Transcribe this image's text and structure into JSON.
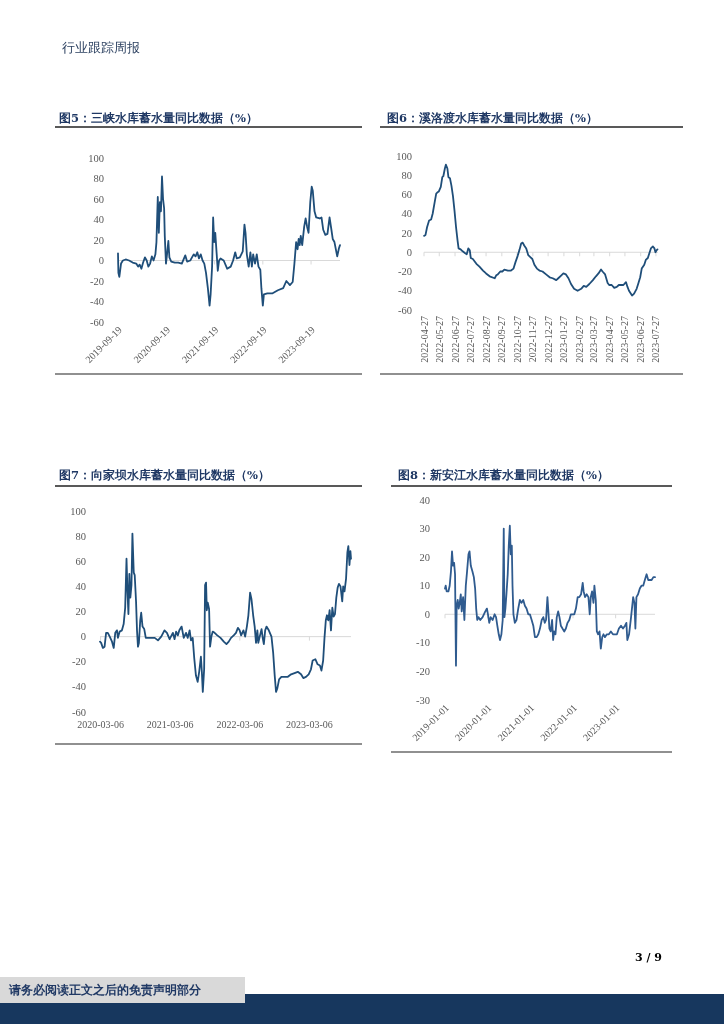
{
  "chart_data": [
    {
      "type": "line",
      "title": "图5：三峡水库蓄水量同比数据（%）",
      "annotations": [
        "行业跟踪周报"
      ],
      "color": "#1f4e79",
      "xlim": [
        "2019-09-19",
        "2024-04-25"
      ],
      "xticks": [
        "2019-09-19",
        "2020-09-19",
        "2021-09-19",
        "2022-09-19",
        "2023-09-19"
      ],
      "ylim": [
        -60,
        100
      ],
      "yticks": [
        -60,
        -40,
        -20,
        0,
        20,
        40,
        60,
        80,
        100
      ],
      "x": [
        "2019-09-19",
        "2019-09-22",
        "2019-09-29",
        "2019-10-12",
        "2019-10-26",
        "2019-11-16",
        "2019-12-12",
        "2020-01-08",
        "2020-02-04",
        "2020-02-18",
        "2020-03-01",
        "2020-03-14",
        "2020-03-27",
        "2020-04-10",
        "2020-04-23",
        "2020-05-06",
        "2020-05-19",
        "2020-06-01",
        "2020-06-14",
        "2020-06-28",
        "2020-07-06",
        "2020-07-16",
        "2020-07-24",
        "2020-08-01",
        "2020-08-09",
        "2020-08-17",
        "2020-08-25",
        "2020-09-02",
        "2020-09-07",
        "2020-09-16",
        "2020-09-24",
        "2020-10-04",
        "2020-10-12",
        "2020-10-26",
        "2020-11-22",
        "2020-12-18",
        "2021-01-14",
        "2021-02-09",
        "2021-02-23",
        "2021-03-19",
        "2021-04-01",
        "2021-04-14",
        "2021-04-28",
        "2021-05-11",
        "2021-05-24",
        "2021-06-06",
        "2021-06-20",
        "2021-07-03",
        "2021-07-16",
        "2021-07-30",
        "2021-08-12",
        "2021-08-20",
        "2021-08-31",
        "2021-09-08",
        "2021-09-16",
        "2021-09-24",
        "2021-10-05",
        "2021-10-13",
        "2021-10-23",
        "2021-11-03",
        "2021-11-27",
        "2021-12-23",
        "2022-01-19",
        "2022-02-06",
        "2022-02-22",
        "2022-03-06",
        "2022-03-29",
        "2022-04-20",
        "2022-05-03",
        "2022-05-11",
        "2022-05-21",
        "2022-06-04",
        "2022-06-17",
        "2022-06-28",
        "2022-07-08",
        "2022-07-22",
        "2022-08-04",
        "2022-08-17",
        "2022-08-31",
        "2022-09-08",
        "2022-09-19",
        "2022-09-27",
        "2022-10-23",
        "2022-12-02",
        "2023-01-11",
        "2023-02-20",
        "2023-03-16",
        "2023-04-12",
        "2023-05-03",
        "2023-05-16",
        "2023-05-29",
        "2023-06-09",
        "2023-06-17",
        "2023-06-25",
        "2023-07-03",
        "2023-07-14",
        "2023-07-29",
        "2023-08-09",
        "2023-08-20",
        "2023-08-31",
        "2023-09-13",
        "2023-09-24",
        "2023-10-02",
        "2023-10-15",
        "2023-10-28",
        "2023-11-24",
        "2023-12-07",
        "2023-12-20",
        "2024-01-05",
        "2024-01-21",
        "2024-02-06",
        "2024-02-20",
        "2024-03-01",
        "2024-03-14",
        "2024-04-04",
        "2024-04-17",
        "2024-04-25"
      ],
      "values": [
        7,
        -12,
        -16,
        -3,
        0,
        1,
        0,
        -2,
        -3,
        -6,
        -4,
        -8,
        -2,
        3,
        0,
        -6,
        -3,
        4,
        0,
        6,
        18,
        62,
        27,
        57,
        48,
        82,
        60,
        51,
        24,
        -3,
        6,
        19,
        3,
        -1,
        -2,
        -2,
        -3,
        5,
        -1,
        0,
        3,
        6,
        4,
        8,
        2,
        6,
        0,
        -3,
        -12,
        -27,
        -44,
        -33,
        -6,
        42,
        18,
        27,
        6,
        -10,
        0,
        2,
        0,
        -8,
        -6,
        0,
        8,
        2,
        3,
        9,
        35,
        27,
        6,
        -6,
        8,
        -6,
        6,
        -3,
        6,
        -6,
        -9,
        -27,
        -44,
        -33,
        -32,
        -32,
        -29,
        -27,
        -20,
        -24,
        -21,
        -3,
        18,
        11,
        21,
        15,
        24,
        15,
        33,
        41,
        33,
        27,
        57,
        72,
        68,
        48,
        42,
        41,
        42,
        30,
        25,
        26,
        42,
        30,
        21,
        18,
        4,
        12,
        15
      ]
    },
    {
      "type": "line",
      "title": "图6：溪洛渡水库蓄水量同比数据（%）",
      "color": "#1f4e79",
      "xlim": [
        "2022-04-27",
        "2023-07-31"
      ],
      "xticks": [
        "2022-04-27",
        "2022-05-27",
        "2022-06-27",
        "2022-07-27",
        "2022-08-27",
        "2022-09-27",
        "2022-10-27",
        "2022-11-27",
        "2022-12-27",
        "2023-01-27",
        "2023-02-27",
        "2023-03-27",
        "2023-04-27",
        "2023-05-27",
        "2023-06-27",
        "2023-07-27"
      ],
      "ylim": [
        -60,
        100
      ],
      "yticks": [
        -60,
        -40,
        -20,
        0,
        20,
        40,
        60,
        80,
        100
      ],
      "x": [
        "2022-04-27",
        "2022-04-30",
        "2022-05-03",
        "2022-05-07",
        "2022-05-11",
        "2022-05-14",
        "2022-05-18",
        "2022-05-21",
        "2022-05-23",
        "2022-05-26",
        "2022-05-30",
        "2022-06-02",
        "2022-06-04",
        "2022-06-07",
        "2022-06-09",
        "2022-06-12",
        "2022-06-14",
        "2022-06-17",
        "2022-06-20",
        "2022-06-23",
        "2022-06-26",
        "2022-06-29",
        "2022-07-02",
        "2022-07-04",
        "2022-07-08",
        "2022-07-12",
        "2022-07-17",
        "2022-07-20",
        "2022-07-23",
        "2022-07-26",
        "2022-07-28",
        "2022-08-01",
        "2022-08-08",
        "2022-08-14",
        "2022-08-21",
        "2022-08-27",
        "2022-09-03",
        "2022-09-13",
        "2022-09-16",
        "2022-09-19",
        "2022-09-24",
        "2022-09-28",
        "2022-10-02",
        "2022-10-09",
        "2022-10-15",
        "2022-10-20",
        "2022-10-24",
        "2022-10-28",
        "2022-11-01",
        "2022-11-04",
        "2022-11-07",
        "2022-11-10",
        "2022-11-14",
        "2022-11-18",
        "2022-11-22",
        "2022-11-26",
        "2022-11-30",
        "2022-12-05",
        "2022-12-10",
        "2022-12-16",
        "2022-12-23",
        "2022-12-30",
        "2023-01-05",
        "2023-01-12",
        "2023-01-16",
        "2023-01-22",
        "2023-01-26",
        "2023-01-31",
        "2023-02-05",
        "2023-02-10",
        "2023-02-16",
        "2023-02-23",
        "2023-03-02",
        "2023-03-07",
        "2023-03-12",
        "2023-03-18",
        "2023-03-25",
        "2023-03-31",
        "2023-04-05",
        "2023-04-10",
        "2023-04-13",
        "2023-04-18",
        "2023-04-23",
        "2023-04-26",
        "2023-05-01",
        "2023-05-06",
        "2023-05-11",
        "2023-05-15",
        "2023-05-19",
        "2023-05-24",
        "2023-05-29",
        "2023-06-01",
        "2023-06-04",
        "2023-06-10",
        "2023-06-14",
        "2023-06-19",
        "2023-06-22",
        "2023-06-26",
        "2023-06-29",
        "2023-07-04",
        "2023-07-07",
        "2023-07-11",
        "2023-07-14",
        "2023-07-17",
        "2023-07-21",
        "2023-07-24",
        "2023-07-26",
        "2023-07-28",
        "2023-07-30"
      ],
      "values": [
        17,
        18,
        26,
        33,
        34,
        40,
        52,
        61,
        62,
        63,
        68,
        78,
        79,
        87,
        91,
        87,
        78,
        77,
        69,
        58,
        43,
        26,
        12,
        4,
        3,
        1,
        -1,
        -2,
        4,
        2,
        -6,
        -7,
        -12,
        -15,
        -19,
        -22,
        -25,
        -27,
        -24,
        -23,
        -20,
        -20,
        -18,
        -19,
        -19,
        -17,
        -10,
        -4,
        3,
        9,
        10,
        7,
        4,
        -3,
        -5,
        -7,
        -13,
        -17,
        -19,
        -20,
        -23,
        -26,
        -27,
        -29,
        -27,
        -24,
        -22,
        -23,
        -27,
        -33,
        -38,
        -40,
        -38,
        -35,
        -36,
        -33,
        -29,
        -25,
        -22,
        -18,
        -20,
        -23,
        -32,
        -34,
        -34,
        -37,
        -36,
        -34,
        -34,
        -34,
        -31,
        -36,
        -40,
        -45,
        -43,
        -38,
        -33,
        -26,
        -17,
        -13,
        -8,
        -6,
        -1,
        4,
        6,
        4,
        0,
        2,
        3
      ]
    },
    {
      "type": "line",
      "title": "图7：向家坝水库蓄水量同比数据（%）",
      "color": "#1f4e79",
      "xlim": [
        "2020-03-03",
        "2023-10-10"
      ],
      "xticks": [
        "2020-03-06",
        "2021-03-06",
        "2022-03-06",
        "2023-03-06"
      ],
      "ylim": [
        -60,
        100
      ],
      "yticks": [
        -60,
        -40,
        -20,
        0,
        20,
        40,
        60,
        80,
        100
      ],
      "x": [
        "2020-03-03",
        "2020-03-09",
        "2020-03-18",
        "2020-03-27",
        "2020-04-04",
        "2020-04-13",
        "2020-04-23",
        "2020-05-05",
        "2020-05-14",
        "2020-05-22",
        "2020-05-31",
        "2020-06-05",
        "2020-06-14",
        "2020-06-26",
        "2020-07-05",
        "2020-07-13",
        "2020-07-20",
        "2020-07-25",
        "2020-07-30",
        "2020-08-04",
        "2020-08-09",
        "2020-08-15",
        "2020-08-20",
        "2020-08-27",
        "2020-09-01",
        "2020-09-08",
        "2020-09-13",
        "2020-09-18",
        "2020-09-23",
        "2020-09-30",
        "2020-10-05",
        "2020-10-12",
        "2020-10-21",
        "2020-10-29",
        "2020-11-11",
        "2020-11-28",
        "2020-12-15",
        "2021-01-01",
        "2021-01-18",
        "2021-02-04",
        "2021-02-17",
        "2021-03-03",
        "2021-03-20",
        "2021-03-29",
        "2021-04-06",
        "2021-04-15",
        "2021-04-23",
        "2021-05-05",
        "2021-05-16",
        "2021-05-28",
        "2021-06-06",
        "2021-06-16",
        "2021-06-23",
        "2021-07-02",
        "2021-07-10",
        "2021-07-19",
        "2021-07-28",
        "2021-08-05",
        "2021-08-14",
        "2021-08-19",
        "2021-08-24",
        "2021-08-31",
        "2021-09-05",
        "2021-09-10",
        "2021-09-14",
        "2021-09-19",
        "2021-09-26",
        "2021-10-01",
        "2021-10-08",
        "2021-10-15",
        "2021-10-25",
        "2021-11-08",
        "2021-11-25",
        "2021-12-12",
        "2021-12-26",
        "2022-01-07",
        "2022-01-19",
        "2022-02-02",
        "2022-02-14",
        "2022-02-24",
        "2022-03-05",
        "2022-03-13",
        "2022-03-25",
        "2022-04-03",
        "2022-04-12",
        "2022-04-20",
        "2022-04-29",
        "2022-05-06",
        "2022-05-15",
        "2022-05-23",
        "2022-05-30",
        "2022-06-06",
        "2022-06-11",
        "2022-06-20",
        "2022-06-28",
        "2022-07-04",
        "2022-07-10",
        "2022-07-17",
        "2022-07-24",
        "2022-08-05",
        "2022-08-19",
        "2022-08-28",
        "2022-09-05",
        "2022-09-12",
        "2022-09-19",
        "2022-09-28",
        "2022-10-10",
        "2022-10-27",
        "2022-11-13",
        "2022-11-30",
        "2022-12-18",
        "2023-01-04",
        "2023-01-21",
        "2023-02-02",
        "2023-02-16",
        "2023-03-02",
        "2023-03-14",
        "2023-03-23",
        "2023-04-06",
        "2023-04-18",
        "2023-04-30",
        "2023-05-08",
        "2023-05-17",
        "2023-05-24",
        "2023-05-31",
        "2023-06-06",
        "2023-06-13",
        "2023-06-20",
        "2023-06-27",
        "2023-07-04",
        "2023-07-11",
        "2023-07-18",
        "2023-07-25",
        "2023-08-01",
        "2023-08-08",
        "2023-08-16",
        "2023-08-25",
        "2023-08-30",
        "2023-09-06",
        "2023-09-14",
        "2023-09-21",
        "2023-09-26",
        "2023-10-02",
        "2023-10-07",
        "2023-10-10"
      ],
      "values": [
        -4,
        -5,
        -9,
        -8,
        3,
        3,
        0,
        -4,
        -9,
        3,
        5,
        -1,
        4,
        5,
        10,
        23,
        62,
        36,
        18,
        50,
        31,
        41,
        82,
        51,
        49,
        28,
        5,
        -8,
        -5,
        13,
        19,
        8,
        6,
        -1,
        -1,
        -1,
        -1,
        -3,
        0,
        5,
        3,
        -2,
        3,
        -2,
        4,
        1,
        5,
        8,
        -1,
        3,
        -1,
        5,
        -3,
        -1,
        -17,
        -31,
        -36,
        -28,
        -16,
        -28,
        -44,
        -26,
        41,
        43,
        21,
        27,
        22,
        -8,
        0,
        4,
        3,
        1,
        -1,
        -4,
        -6,
        -4,
        -1,
        1,
        3,
        7,
        5,
        1,
        5,
        0,
        8,
        17,
        35,
        30,
        17,
        8,
        -5,
        5,
        -5,
        1,
        6,
        -1,
        -6,
        5,
        8,
        5,
        0,
        -13,
        -31,
        -44,
        -41,
        -34,
        -32,
        -32,
        -32,
        -30,
        -29,
        -28,
        -30,
        -33,
        -32,
        -30,
        -26,
        -19,
        -18,
        -22,
        -23,
        -27,
        -19,
        -1,
        13,
        17,
        13,
        21,
        5,
        23,
        16,
        18,
        31,
        39,
        42,
        40,
        28,
        40,
        36,
        46,
        67,
        72,
        57,
        68,
        62
      ]
    },
    {
      "type": "line",
      "title": "图8：新安江水库蓄水量同比数据（%）",
      "annotations": [
        "3 / 9",
        "请务必阅读正文之后的免责声明部分"
      ],
      "color": "#2f5b8f",
      "xlim": [
        "2019-01-01",
        "2023-12-04"
      ],
      "xticks": [
        "2019-01-01",
        "2020-01-01",
        "2021-01-01",
        "2022-01-01",
        "2023-01-01"
      ],
      "ylim": [
        -30,
        40
      ],
      "yticks": [
        -30,
        -20,
        -10,
        0,
        10,
        20,
        30,
        40
      ],
      "x": [
        "2019-01-01",
        "2019-01-07",
        "2019-01-15",
        "2019-01-30",
        "2019-02-10",
        "2019-02-21",
        "2019-03-02",
        "2019-03-11",
        "2019-03-20",
        "2019-03-28",
        "2019-04-05",
        "2019-04-11",
        "2019-04-20",
        "2019-04-28",
        "2019-05-07",
        "2019-05-16",
        "2019-05-24",
        "2019-06-05",
        "2019-06-16",
        "2019-06-28",
        "2019-07-09",
        "2019-07-21",
        "2019-07-30",
        "2019-08-10",
        "2019-08-24",
        "2019-09-05",
        "2019-09-16",
        "2019-09-25",
        "2019-10-04",
        "2019-10-15",
        "2019-10-30",
        "2019-11-19",
        "2019-12-12",
        "2019-12-26",
        "2020-01-04",
        "2020-01-15",
        "2020-01-27",
        "2020-02-13",
        "2020-03-01",
        "2020-03-13",
        "2020-03-24",
        "2020-04-05",
        "2020-04-16",
        "2020-04-28",
        "2020-05-09",
        "2020-05-18",
        "2020-05-24",
        "2020-06-01",
        "2020-06-10",
        "2020-06-21",
        "2020-06-30",
        "2020-07-09",
        "2020-07-17",
        "2020-07-26",
        "2020-08-01",
        "2020-08-09",
        "2020-08-21",
        "2020-09-04",
        "2020-09-19",
        "2020-10-03",
        "2020-10-17",
        "2020-11-01",
        "2020-11-15",
        "2020-11-29",
        "2020-12-14",
        "2020-12-28",
        "2021-01-12",
        "2021-01-26",
        "2021-02-09",
        "2021-02-24",
        "2021-03-10",
        "2021-03-24",
        "2021-04-08",
        "2021-04-22",
        "2021-05-04",
        "2021-05-15",
        "2021-05-27",
        "2021-06-04",
        "2021-06-13",
        "2021-06-24",
        "2021-07-06",
        "2021-07-15",
        "2021-07-23",
        "2021-08-04",
        "2021-08-15",
        "2021-08-27",
        "2021-09-07",
        "2021-09-19",
        "2021-10-03",
        "2021-10-18",
        "2021-11-01",
        "2021-11-15",
        "2021-11-30",
        "2021-12-14",
        "2021-12-29",
        "2022-01-12",
        "2022-01-26",
        "2022-02-10",
        "2022-02-24",
        "2022-03-11",
        "2022-03-25",
        "2022-04-02",
        "2022-04-14",
        "2022-04-28",
        "2022-05-13",
        "2022-05-24",
        "2022-06-02",
        "2022-06-13",
        "2022-06-25",
        "2022-07-03",
        "2022-07-15",
        "2022-07-24",
        "2022-08-04",
        "2022-08-16",
        "2022-08-27",
        "2022-09-08",
        "2022-09-19",
        "2022-10-01",
        "2022-10-18",
        "2022-11-04",
        "2022-11-21",
        "2022-12-09",
        "2022-12-26",
        "2023-01-12",
        "2023-01-29",
        "2023-02-16",
        "2023-03-05",
        "2023-03-22",
        "2023-04-03",
        "2023-04-11",
        "2023-04-26",
        "2023-05-13",
        "2023-05-31",
        "2023-06-11",
        "2023-06-19",
        "2023-06-28",
        "2023-07-12",
        "2023-07-27",
        "2023-08-10",
        "2023-08-25",
        "2023-09-08",
        "2023-09-23",
        "2023-10-07",
        "2023-10-22",
        "2023-11-05",
        "2023-11-20",
        "2023-12-04"
      ],
      "values": [
        9,
        10,
        8,
        8,
        10,
        15,
        22,
        17,
        18,
        14,
        -18,
        3,
        5,
        2,
        4,
        7,
        1,
        6,
        -2,
        10,
        15,
        21,
        22,
        17,
        15,
        13,
        9,
        2,
        -2,
        -1,
        -2,
        -1,
        1,
        2,
        0,
        -3,
        -1,
        -2,
        0,
        -1,
        -4,
        -7,
        -9,
        -7,
        -2,
        30,
        -1,
        2,
        7,
        14,
        24,
        31,
        21,
        24,
        10,
        0,
        -3,
        -2,
        2,
        5,
        4,
        5,
        3,
        2,
        0,
        0,
        -2,
        -4,
        -8,
        -8,
        -7,
        -5,
        -2,
        -1,
        -3,
        -2,
        6,
        1,
        -5,
        -6,
        -2,
        -9,
        -6,
        -7,
        -1,
        1,
        -1,
        -4,
        -5,
        -6,
        -5,
        -3,
        -2,
        0,
        0,
        0,
        2,
        6,
        6,
        7,
        11,
        8,
        6,
        7,
        6,
        0,
        6,
        8,
        4,
        10,
        5,
        -6,
        -7,
        -6,
        -12,
        -8,
        -7,
        -8,
        -7,
        -7,
        -6,
        -7,
        -7,
        -7,
        -5,
        -4,
        -5,
        -4,
        -3,
        -9,
        -7,
        -1,
        6,
        4,
        -5,
        6,
        7,
        9,
        10,
        10,
        12,
        14,
        12,
        12,
        12,
        13,
        13
      ]
    }
  ]
}
